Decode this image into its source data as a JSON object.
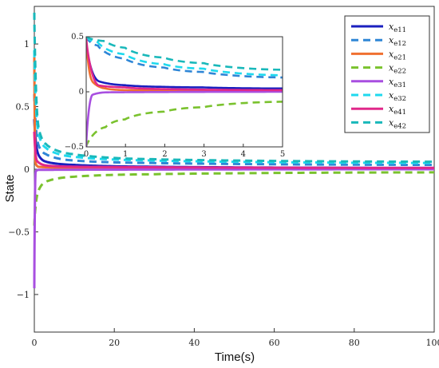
{
  "chart_data": [
    {
      "type": "line",
      "title": "",
      "xlabel": "Time(s)",
      "ylabel": "State",
      "xlim": [
        0,
        100
      ],
      "ylim": [
        -1.3,
        1.3
      ],
      "xticks": [
        "0",
        "20",
        "40",
        "60",
        "80",
        "100"
      ],
      "yticks": [
        "-1",
        "-0.5",
        "0",
        "0.5",
        "1"
      ],
      "grid": false,
      "legend_position": "top-right",
      "series": [
        {
          "name": "x_e11",
          "color": "#1a1fbf",
          "dash": "solid",
          "values": [
            [
              0,
              0.4
            ],
            [
              1,
              0.12
            ],
            [
              3,
              0.06
            ],
            [
              10,
              0.035
            ],
            [
              30,
              0.02
            ],
            [
              100,
              0.01
            ]
          ]
        },
        {
          "name": "x_e12",
          "color": "#2e86d6",
          "dash": "dashed",
          "values": [
            [
              0,
              0.6
            ],
            [
              1,
              0.2
            ],
            [
              3,
              0.12
            ],
            [
              10,
              0.07
            ],
            [
              30,
              0.05
            ],
            [
              100,
              0.035
            ]
          ]
        },
        {
          "name": "x_e21",
          "color": "#f07030",
          "dash": "solid",
          "values": [
            [
              0,
              0.9
            ],
            [
              0.3,
              0.05
            ],
            [
              1,
              0.02
            ],
            [
              10,
              0.01
            ],
            [
              100,
              0.005
            ]
          ]
        },
        {
          "name": "x_e22",
          "color": "#7ac22e",
          "dash": "dashed",
          "values": [
            [
              0,
              -0.45
            ],
            [
              1,
              -0.18
            ],
            [
              3,
              -0.1
            ],
            [
              10,
              -0.06
            ],
            [
              30,
              -0.04
            ],
            [
              100,
              -0.025
            ]
          ]
        },
        {
          "name": "x_e31",
          "color": "#a84fe0",
          "dash": "solid",
          "values": [
            [
              0,
              -0.95
            ],
            [
              0.3,
              -0.02
            ],
            [
              1,
              -0.005
            ],
            [
              100,
              0.0
            ]
          ]
        },
        {
          "name": "x_e32",
          "color": "#1fd9ee",
          "dash": "dashed",
          "values": [
            [
              0,
              0.95
            ],
            [
              1,
              0.3
            ],
            [
              3,
              0.17
            ],
            [
              10,
              0.1
            ],
            [
              30,
              0.07
            ],
            [
              100,
              0.05
            ]
          ]
        },
        {
          "name": "x_e41",
          "color": "#e0288a",
          "dash": "solid",
          "values": [
            [
              0,
              0.3
            ],
            [
              0.6,
              0.07
            ],
            [
              3,
              0.03
            ],
            [
              10,
              0.02
            ],
            [
              100,
              0.01
            ]
          ]
        },
        {
          "name": "x_e42",
          "color": "#19b8ba",
          "dash": "dashed",
          "values": [
            [
              0,
              1.25
            ],
            [
              1,
              0.35
            ],
            [
              3,
              0.2
            ],
            [
              10,
              0.12
            ],
            [
              30,
              0.08
            ],
            [
              100,
              0.06
            ]
          ]
        }
      ],
      "legend": {
        "items": [
          {
            "label": "x",
            "sub": "e11"
          },
          {
            "label": "x",
            "sub": "e12"
          },
          {
            "label": "x",
            "sub": "e21"
          },
          {
            "label": "x",
            "sub": "e22"
          },
          {
            "label": "x",
            "sub": "e31"
          },
          {
            "label": "x",
            "sub": "e32"
          },
          {
            "label": "x",
            "sub": "e41"
          },
          {
            "label": "x",
            "sub": "e42"
          }
        ]
      }
    },
    {
      "type": "line",
      "title": "",
      "role": "inset",
      "xlim": [
        0,
        5
      ],
      "ylim": [
        -0.5,
        0.5
      ],
      "xticks": [
        "0",
        "1",
        "2",
        "3",
        "4",
        "5"
      ],
      "yticks": [
        "-0.5",
        "0",
        "0.5"
      ],
      "series": [
        {
          "name": "x_e11",
          "values": [
            [
              0,
              0.45
            ],
            [
              0.3,
              0.1
            ],
            [
              1,
              0.06
            ],
            [
              2,
              0.045
            ],
            [
              3,
              0.04
            ],
            [
              5,
              0.03
            ]
          ]
        },
        {
          "name": "x_e12",
          "values": [
            [
              0,
              0.5
            ],
            [
              0.3,
              0.42
            ],
            [
              1,
              0.3
            ],
            [
              2,
              0.22
            ],
            [
              3,
              0.18
            ],
            [
              5,
              0.13
            ]
          ]
        },
        {
          "name": "x_e21",
          "values": [
            [
              0,
              0.5
            ],
            [
              0.15,
              0.1
            ],
            [
              0.5,
              0.03
            ],
            [
              1,
              0.015
            ],
            [
              5,
              0.005
            ]
          ]
        },
        {
          "name": "x_e22",
          "values": [
            [
              0,
              -0.5
            ],
            [
              0.5,
              -0.32
            ],
            [
              1,
              -0.25
            ],
            [
              2,
              -0.18
            ],
            [
              3,
              -0.14
            ],
            [
              5,
              -0.09
            ]
          ]
        },
        {
          "name": "x_e31",
          "values": [
            [
              0,
              -0.5
            ],
            [
              0.15,
              -0.03
            ],
            [
              0.5,
              -0.005
            ],
            [
              5,
              0.0
            ]
          ]
        },
        {
          "name": "x_e32",
          "values": [
            [
              0,
              0.5
            ],
            [
              0.3,
              0.45
            ],
            [
              1,
              0.34
            ],
            [
              2,
              0.25
            ],
            [
              3,
              0.21
            ],
            [
              5,
              0.15
            ]
          ]
        },
        {
          "name": "x_e41",
          "values": [
            [
              0,
              0.5
            ],
            [
              0.3,
              0.06
            ],
            [
              1,
              0.04
            ],
            [
              2,
              0.025
            ],
            [
              5,
              0.015
            ]
          ]
        },
        {
          "name": "x_e42",
          "values": [
            [
              0,
              0.5
            ],
            [
              0.5,
              0.46
            ],
            [
              1,
              0.4
            ],
            [
              2,
              0.31
            ],
            [
              3,
              0.26
            ],
            [
              5,
              0.2
            ]
          ]
        }
      ]
    }
  ]
}
